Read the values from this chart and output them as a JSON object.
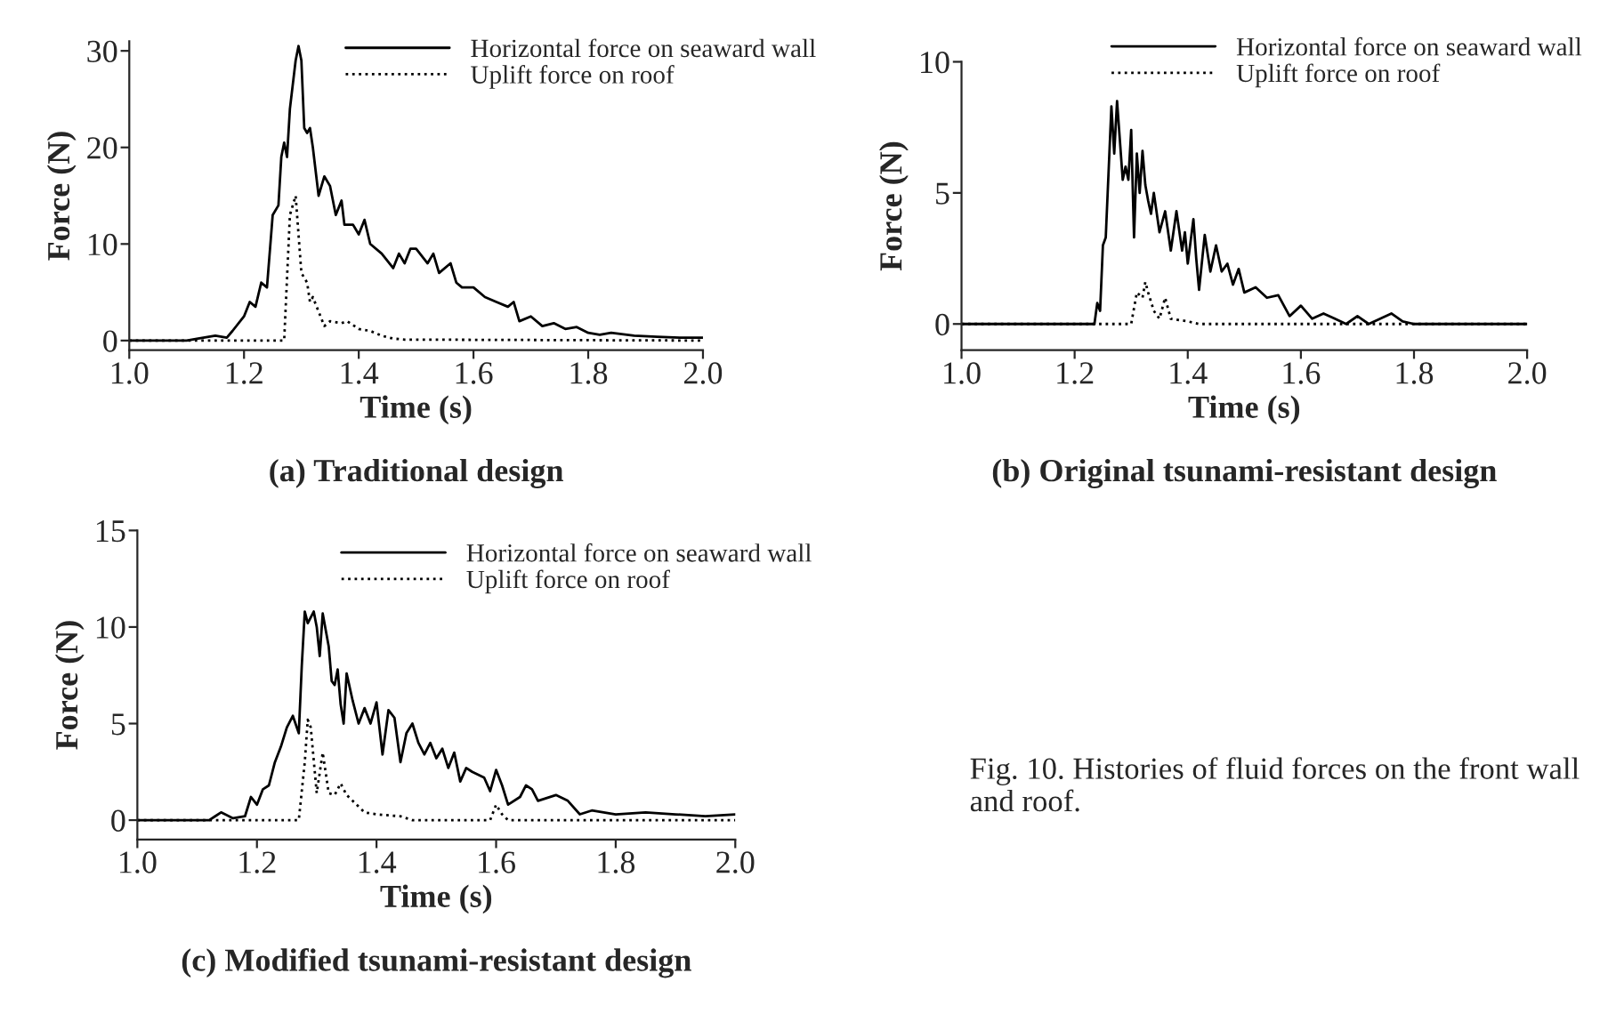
{
  "chart_data": [
    {
      "type": "line",
      "xlabel": "Time (s)",
      "ylabel": "Force (N)",
      "subtitle": "(a) Traditional design",
      "xlim": [
        1.0,
        2.0
      ],
      "ylim": [
        -1,
        31
      ],
      "xticks": [
        {
          "value": 1.0,
          "label": "1.0"
        },
        {
          "value": 1.2,
          "label": "1.2"
        },
        {
          "value": 1.4,
          "label": "1.4"
        },
        {
          "value": 1.6,
          "label": "1.6"
        },
        {
          "value": 1.8,
          "label": "1.8"
        },
        {
          "value": 2.0,
          "label": "2.0"
        }
      ],
      "yticks": [
        0,
        10,
        20,
        30
      ],
      "legend": "top right",
      "grid": false,
      "series": [
        {
          "name": "Horizontal force on seaward wall",
          "color": "#000000",
          "line_style": "solid",
          "x": [
            1.0,
            1.1,
            1.12,
            1.15,
            1.17,
            1.18,
            1.2,
            1.21,
            1.22,
            1.23,
            1.24,
            1.25,
            1.26,
            1.265,
            1.27,
            1.275,
            1.28,
            1.29,
            1.295,
            1.3,
            1.305,
            1.31,
            1.315,
            1.32,
            1.33,
            1.34,
            1.35,
            1.36,
            1.37,
            1.375,
            1.39,
            1.4,
            1.41,
            1.42,
            1.44,
            1.46,
            1.47,
            1.48,
            1.49,
            1.5,
            1.52,
            1.53,
            1.54,
            1.56,
            1.57,
            1.58,
            1.6,
            1.62,
            1.64,
            1.66,
            1.67,
            1.68,
            1.7,
            1.72,
            1.74,
            1.76,
            1.78,
            1.8,
            1.82,
            1.84,
            1.88,
            1.92,
            1.96,
            2.0
          ],
          "values": [
            0,
            0,
            0.2,
            0.5,
            0.3,
            1,
            2.5,
            4,
            3.5,
            6,
            5.5,
            13,
            14,
            19,
            20.5,
            19,
            24,
            29,
            30.5,
            29,
            22,
            21.5,
            22,
            20,
            15,
            17,
            16,
            13,
            14.5,
            12,
            12,
            11,
            12.5,
            10,
            9,
            7.5,
            9,
            8,
            9.5,
            9.5,
            8,
            9,
            7,
            8,
            6,
            5.5,
            5.5,
            4.5,
            4,
            3.5,
            4,
            2,
            2.5,
            1.5,
            1.8,
            1.2,
            1.4,
            0.8,
            0.6,
            0.8,
            0.5,
            0.4,
            0.3,
            0.3
          ]
        },
        {
          "name": "Uplift force on roof",
          "color": "#000000",
          "line_style": "dotted",
          "x": [
            1.0,
            1.27,
            1.28,
            1.285,
            1.29,
            1.3,
            1.31,
            1.315,
            1.32,
            1.33,
            1.34,
            1.35,
            1.37,
            1.38,
            1.4,
            1.42,
            1.44,
            1.46,
            1.48,
            2.0
          ],
          "values": [
            0,
            0,
            13,
            14,
            15,
            7,
            6,
            4,
            4.5,
            3,
            1.5,
            2,
            1.8,
            2,
            1.2,
            1.0,
            0.5,
            0.2,
            0.1,
            0
          ]
        }
      ]
    },
    {
      "type": "line",
      "xlabel": "Time (s)",
      "ylabel": "Force (N)",
      "subtitle": "(b) Original tsunami-resistant design",
      "xlim": [
        1.0,
        2.0
      ],
      "ylim": [
        -1,
        10
      ],
      "xticks": [
        {
          "value": 1.0,
          "label": "1.0"
        },
        {
          "value": 1.2,
          "label": "1.2"
        },
        {
          "value": 1.4,
          "label": "1.4"
        },
        {
          "value": 1.6,
          "label": "1.6"
        },
        {
          "value": 1.8,
          "label": "1.8"
        },
        {
          "value": 2.0,
          "label": "2.0"
        }
      ],
      "yticks": [
        0,
        5,
        10
      ],
      "legend": "top right",
      "grid": false,
      "series": [
        {
          "name": "Horizontal force on seaward wall",
          "color": "#000000",
          "line_style": "solid",
          "x": [
            1.0,
            1.235,
            1.24,
            1.245,
            1.25,
            1.255,
            1.265,
            1.27,
            1.275,
            1.28,
            1.285,
            1.29,
            1.295,
            1.3,
            1.305,
            1.31,
            1.315,
            1.32,
            1.325,
            1.33,
            1.335,
            1.34,
            1.35,
            1.36,
            1.37,
            1.38,
            1.39,
            1.395,
            1.4,
            1.41,
            1.415,
            1.42,
            1.43,
            1.44,
            1.45,
            1.46,
            1.47,
            1.48,
            1.49,
            1.5,
            1.52,
            1.54,
            1.56,
            1.58,
            1.6,
            1.62,
            1.64,
            1.66,
            1.68,
            1.7,
            1.72,
            1.76,
            1.78,
            1.8,
            2.0
          ],
          "values": [
            0,
            0,
            0.8,
            0.5,
            3,
            3.3,
            8.3,
            6.5,
            8.5,
            7,
            5.5,
            6,
            5.5,
            7.4,
            3.3,
            6.5,
            5,
            6.6,
            5.3,
            4.7,
            4.2,
            5,
            3.5,
            4.3,
            2.8,
            4.3,
            2.8,
            3.5,
            2.3,
            4,
            2.5,
            1.3,
            3.4,
            2,
            3,
            2,
            2.3,
            1.5,
            2.1,
            1.2,
            1.4,
            1.0,
            1.1,
            0.3,
            0.7,
            0.2,
            0.4,
            0.2,
            0.0,
            0.3,
            0.0,
            0.4,
            0.1,
            0,
            0
          ]
        },
        {
          "name": "Uplift force on roof",
          "color": "#000000",
          "line_style": "dotted",
          "x": [
            1.0,
            1.3,
            1.31,
            1.32,
            1.325,
            1.33,
            1.34,
            1.35,
            1.36,
            1.37,
            1.4,
            1.42,
            2.0
          ],
          "values": [
            0,
            0,
            1.2,
            1.0,
            1.6,
            1.2,
            0.5,
            0.2,
            1.0,
            0.2,
            0.1,
            0,
            0
          ]
        }
      ]
    },
    {
      "type": "line",
      "xlabel": "Time (s)",
      "ylabel": "Force (N)",
      "subtitle": "(c) Modified tsunami-resistant design",
      "xlim": [
        1.0,
        2.0
      ],
      "ylim": [
        -1,
        15
      ],
      "xticks": [
        {
          "value": 1.0,
          "label": "1.0"
        },
        {
          "value": 1.2,
          "label": "1.2"
        },
        {
          "value": 1.4,
          "label": "1.4"
        },
        {
          "value": 1.6,
          "label": "1.6"
        },
        {
          "value": 1.8,
          "label": "1.8"
        },
        {
          "value": 2.0,
          "label": "2.0"
        }
      ],
      "yticks": [
        0,
        5,
        10,
        15
      ],
      "legend": "top right",
      "grid": false,
      "annotations": [
        "Fig. 10. Histories of fluid forces on the front wall and roof."
      ],
      "series": [
        {
          "name": "Horizontal force on seaward wall",
          "color": "#000000",
          "line_style": "solid",
          "x": [
            1.0,
            1.12,
            1.13,
            1.14,
            1.16,
            1.18,
            1.19,
            1.2,
            1.21,
            1.22,
            1.23,
            1.24,
            1.25,
            1.26,
            1.27,
            1.275,
            1.28,
            1.285,
            1.29,
            1.295,
            1.3,
            1.305,
            1.31,
            1.32,
            1.325,
            1.33,
            1.335,
            1.34,
            1.345,
            1.35,
            1.36,
            1.37,
            1.38,
            1.39,
            1.4,
            1.41,
            1.42,
            1.43,
            1.44,
            1.45,
            1.46,
            1.47,
            1.48,
            1.49,
            1.5,
            1.51,
            1.52,
            1.53,
            1.54,
            1.55,
            1.56,
            1.58,
            1.59,
            1.6,
            1.61,
            1.62,
            1.64,
            1.65,
            1.66,
            1.67,
            1.7,
            1.72,
            1.74,
            1.76,
            1.8,
            1.85,
            1.9,
            1.95,
            2.0
          ],
          "values": [
            0,
            0,
            0.2,
            0.4,
            0.1,
            0.2,
            1.2,
            0.8,
            1.6,
            1.8,
            3,
            3.8,
            4.8,
            5.4,
            4.5,
            8,
            10.8,
            10.2,
            10.5,
            10.8,
            10,
            8.5,
            10.7,
            9,
            7.2,
            7,
            7.8,
            6,
            5,
            7.6,
            6.2,
            5.0,
            5.8,
            5.0,
            6.1,
            3.4,
            5.7,
            5.3,
            3.0,
            4.5,
            5.0,
            4.0,
            3.4,
            4.0,
            3.2,
            3.7,
            2.7,
            3.5,
            2.0,
            2.7,
            2.5,
            2.2,
            1.5,
            2.6,
            1.8,
            0.8,
            1.2,
            1.8,
            1.6,
            1.0,
            1.3,
            1.0,
            0.3,
            0.5,
            0.3,
            0.4,
            0.3,
            0.2,
            0.3
          ]
        },
        {
          "name": "Uplift force on roof",
          "color": "#000000",
          "line_style": "dotted",
          "x": [
            1.0,
            1.27,
            1.28,
            1.285,
            1.29,
            1.3,
            1.31,
            1.32,
            1.33,
            1.34,
            1.35,
            1.36,
            1.38,
            1.4,
            1.44,
            1.46,
            1.59,
            1.6,
            1.61,
            1.62,
            2.0
          ],
          "values": [
            0,
            0,
            3,
            5.2,
            4.8,
            1.4,
            3.5,
            1.4,
            1.3,
            1.9,
            1.3,
            1.0,
            0.4,
            0.3,
            0.2,
            0,
            0,
            0.8,
            0.3,
            0,
            0
          ]
        }
      ]
    }
  ]
}
